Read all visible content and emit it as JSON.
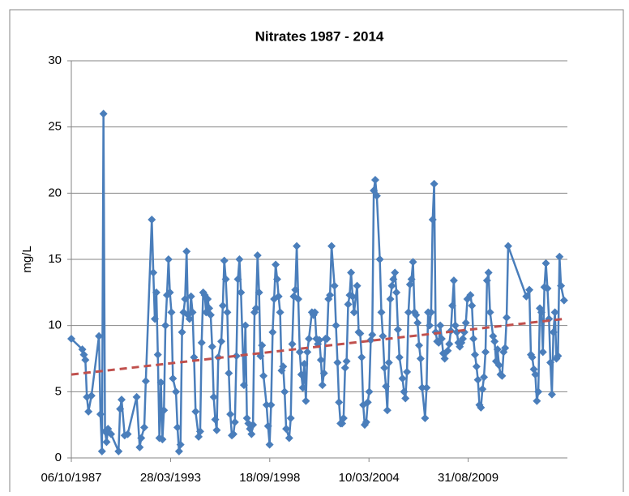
{
  "chart_data": {
    "type": "line",
    "title": "Nitrates 1987 - 2014",
    "ylabel": "mg/L",
    "xlim": [
      "1987-10-06",
      "2015-02-21"
    ],
    "xticks": [
      {
        "value": "1987-10-06",
        "label": "06/10/1987"
      },
      {
        "value": "1993-03-28",
        "label": "28/03/1993"
      },
      {
        "value": "1998-09-18",
        "label": "18/09/1998"
      },
      {
        "value": "2004-03-10",
        "label": "10/03/2004"
      },
      {
        "value": "2009-08-31",
        "label": "31/08/2009"
      }
    ],
    "ylim": [
      0,
      30
    ],
    "yticks": [
      0,
      5,
      10,
      15,
      20,
      25,
      30
    ],
    "grid": true,
    "series": [
      {
        "color": "#4a7ebb",
        "x": [
          "1987-10-06",
          "1988-05-15",
          "1988-06-15",
          "1988-07-15",
          "1988-08-15",
          "1988-09-15",
          "1988-11-15",
          "1989-04-15",
          "1989-05-15",
          "1989-06-15",
          "1989-07-15",
          "1989-08-15",
          "1989-09-15",
          "1989-10-15",
          "1989-12-15",
          "1990-05-15",
          "1990-06-15",
          "1990-07-15",
          "1990-09-15",
          "1990-11-15",
          "1991-05-15",
          "1991-07-15",
          "1991-08-15",
          "1991-10-15",
          "1991-11-15",
          "1992-03-15",
          "1992-04-15",
          "1992-05-15",
          "1992-06-15",
          "1992-07-15",
          "1992-08-15",
          "1992-09-15",
          "1992-10-15",
          "1992-11-15",
          "1992-12-15",
          "1993-01-15",
          "1993-02-15",
          "1993-03-15",
          "1993-04-15",
          "1993-05-15",
          "1993-07-15",
          "1993-08-15",
          "1993-09-15",
          "1993-10-15",
          "1993-11-15",
          "1993-12-15",
          "1994-01-15",
          "1994-02-15",
          "1994-03-15",
          "1994-04-15",
          "1994-05-15",
          "1994-06-15",
          "1994-07-15",
          "1994-08-15",
          "1994-10-15",
          "1994-11-15",
          "1994-12-15",
          "1995-01-15",
          "1995-02-15",
          "1995-03-15",
          "1995-04-15",
          "1995-05-15",
          "1995-06-15",
          "1995-07-15",
          "1995-08-15",
          "1995-09-15",
          "1995-10-15",
          "1995-11-15",
          "1996-01-15",
          "1996-02-15",
          "1996-03-15",
          "1996-04-15",
          "1996-05-15",
          "1996-06-15",
          "1996-07-15",
          "1996-08-15",
          "1996-09-15",
          "1996-10-15",
          "1996-11-15",
          "1996-12-15",
          "1997-01-15",
          "1997-02-15",
          "1997-04-15",
          "1997-05-15",
          "1997-06-15",
          "1997-07-15",
          "1997-08-15",
          "1997-09-15",
          "1997-10-15",
          "1997-11-15",
          "1997-12-15",
          "1998-01-15",
          "1998-02-15",
          "1998-03-15",
          "1998-04-15",
          "1998-05-15",
          "1998-07-15",
          "1998-08-15",
          "1998-09-15",
          "1998-10-15",
          "1998-11-15",
          "1998-12-15",
          "1999-01-15",
          "1999-02-15",
          "1999-03-15",
          "1999-04-15",
          "1999-05-15",
          "1999-06-15",
          "1999-07-15",
          "1999-08-15",
          "1999-10-15",
          "1999-11-15",
          "1999-12-15",
          "2000-01-15",
          "2000-02-15",
          "2000-03-15",
          "2000-04-15",
          "2000-05-15",
          "2000-06-15",
          "2000-07-15",
          "2000-08-15",
          "2000-09-15",
          "2000-10-15",
          "2000-11-15",
          "2001-01-15",
          "2001-02-15",
          "2001-03-15",
          "2001-04-15",
          "2001-05-15",
          "2001-06-15",
          "2001-07-15",
          "2001-08-15",
          "2001-09-15",
          "2001-10-15",
          "2001-11-15",
          "2001-12-15",
          "2002-01-15",
          "2002-02-15",
          "2002-04-15",
          "2002-05-15",
          "2002-06-15",
          "2002-07-15",
          "2002-08-15",
          "2002-09-15",
          "2002-10-15",
          "2002-11-15",
          "2002-12-15",
          "2003-01-15",
          "2003-02-15",
          "2003-03-15",
          "2003-04-15",
          "2003-05-15",
          "2003-07-15",
          "2003-08-15",
          "2003-09-15",
          "2003-10-15",
          "2003-11-15",
          "2003-12-15",
          "2004-01-15",
          "2004-02-15",
          "2004-03-15",
          "2004-04-15",
          "2004-05-15",
          "2004-06-15",
          "2004-07-15",
          "2004-08-15",
          "2004-10-15",
          "2004-11-15",
          "2004-12-15",
          "2005-01-15",
          "2005-02-15",
          "2005-03-15",
          "2005-04-15",
          "2005-05-15",
          "2005-06-15",
          "2005-07-15",
          "2005-08-15",
          "2005-09-15",
          "2005-10-15",
          "2005-11-15",
          "2006-01-15",
          "2006-02-15",
          "2006-03-15",
          "2006-04-15",
          "2006-05-15",
          "2006-06-15",
          "2006-07-15",
          "2006-08-15",
          "2006-09-15",
          "2006-10-15",
          "2006-11-15",
          "2006-12-15",
          "2007-01-15",
          "2007-02-15",
          "2007-04-15",
          "2007-05-15",
          "2007-06-15",
          "2007-07-15",
          "2007-08-15",
          "2007-09-15",
          "2007-10-15",
          "2007-11-15",
          "2007-12-15",
          "2008-01-15",
          "2008-02-15",
          "2008-03-15",
          "2008-04-15",
          "2008-05-15",
          "2008-07-15",
          "2008-08-15",
          "2008-09-15",
          "2008-10-15",
          "2008-11-15",
          "2008-12-15",
          "2009-01-15",
          "2009-02-15",
          "2009-03-15",
          "2009-04-15",
          "2009-05-15",
          "2009-06-15",
          "2009-07-15",
          "2009-08-15",
          "2009-10-15",
          "2009-11-15",
          "2009-12-15",
          "2010-01-15",
          "2010-02-15",
          "2010-03-15",
          "2010-04-15",
          "2010-05-15",
          "2010-06-15",
          "2010-07-15",
          "2010-08-15",
          "2010-09-15",
          "2010-10-15",
          "2010-11-15",
          "2011-01-15",
          "2011-02-15",
          "2011-03-15",
          "2011-04-15",
          "2011-05-15",
          "2011-06-15",
          "2011-07-15",
          "2011-08-15",
          "2011-09-15",
          "2011-10-15",
          "2011-11-15",
          "2012-11-15",
          "2013-01-15",
          "2013-02-15",
          "2013-03-15",
          "2013-04-15",
          "2013-05-15",
          "2013-06-15",
          "2013-07-15",
          "2013-08-15",
          "2013-09-15",
          "2013-10-15",
          "2013-11-15",
          "2013-12-15",
          "2014-01-15",
          "2014-02-15",
          "2014-03-15",
          "2014-04-15",
          "2014-05-15",
          "2014-06-15",
          "2014-07-15",
          "2014-08-15",
          "2014-09-15",
          "2014-10-15",
          "2014-12-15"
        ],
        "values": [
          9,
          8.2,
          7.8,
          7.4,
          4.6,
          3.5,
          4.7,
          9.2,
          3.3,
          0.5,
          26,
          2,
          1.2,
          2.2,
          1.8,
          0.5,
          3.7,
          4.4,
          1.7,
          1.8,
          4.6,
          0.8,
          1.5,
          2.3,
          5.8,
          18,
          14,
          10.5,
          12.5,
          7.8,
          1.5,
          5.7,
          1.4,
          3.6,
          10,
          12.3,
          15,
          12.5,
          11,
          6,
          5,
          2.3,
          0.5,
          1,
          9.5,
          11,
          12,
          15.6,
          10.8,
          10.5,
          12.2,
          11,
          7.6,
          3.5,
          1.6,
          2,
          8.7,
          12.5,
          12.3,
          11,
          12,
          11.3,
          10.8,
          8.4,
          4.6,
          2.9,
          2.1,
          7.6,
          8.8,
          11.5,
          14.9,
          13.5,
          11,
          6.4,
          3.3,
          1.7,
          1.8,
          2.7,
          7.7,
          13.5,
          15,
          12.5,
          5.5,
          10,
          3,
          2.6,
          2.2,
          1.8,
          2.5,
          11,
          11.3,
          15.3,
          12.5,
          7.7,
          8.5,
          6.2,
          4,
          2.4,
          1,
          4,
          9.5,
          12,
          14.6,
          13.5,
          12.2,
          11,
          6.6,
          6.9,
          5,
          2.2,
          1.5,
          3,
          8.6,
          12.2,
          12.7,
          16,
          12,
          8,
          6.3,
          5.3,
          7.1,
          4.3,
          8,
          9,
          11,
          10.8,
          11,
          9,
          8.6,
          8.9,
          7.4,
          5.5,
          6.4,
          9,
          9,
          12,
          12.3,
          16,
          13,
          10,
          7.2,
          4.2,
          2.6,
          2.6,
          3,
          6.8,
          7.3,
          11.6,
          12.3,
          14,
          12.2,
          11,
          13,
          9.5,
          9.4,
          7.6,
          4,
          2.5,
          2.7,
          4.2,
          5,
          8.9,
          9.3,
          20.2,
          21,
          19.8,
          15,
          11,
          9.2,
          6.8,
          5.4,
          3.6,
          7.2,
          12,
          13,
          13.5,
          14,
          12.5,
          9.7,
          7.6,
          6,
          5,
          4.5,
          6.5,
          11,
          13.1,
          13.5,
          14.8,
          11,
          10.8,
          10.2,
          8.5,
          7.5,
          5.3,
          3,
          5.3,
          11,
          10,
          11,
          18,
          20.7,
          9.5,
          8.8,
          8.7,
          10,
          9,
          7.9,
          7.5,
          8.1,
          8.6,
          9.6,
          11.5,
          13.4,
          10,
          9.5,
          8.7,
          8.4,
          8.7,
          9,
          9.5,
          10.2,
          12,
          12.3,
          11.5,
          9,
          7.8,
          6.9,
          5.9,
          4,
          3.8,
          5.2,
          6.1,
          8,
          13.4,
          14,
          11,
          9.2,
          8.8,
          7.3,
          8.2,
          7,
          6.3,
          6.2,
          8,
          8.3,
          10.6,
          16,
          12.2,
          12.7,
          7.8,
          7.6,
          6.7,
          6.3,
          4.3,
          5,
          11.3,
          11,
          8,
          12.9,
          14.7,
          12.8,
          10.5,
          7.2,
          4.8,
          9.5,
          11,
          7.5,
          7.7,
          15.2,
          13,
          11.9
        ]
      }
    ],
    "trendline": {
      "color": "#c0504d",
      "x": [
        "1987-10-06",
        "2014-12-15"
      ],
      "values": [
        6.3,
        10.5
      ]
    }
  }
}
